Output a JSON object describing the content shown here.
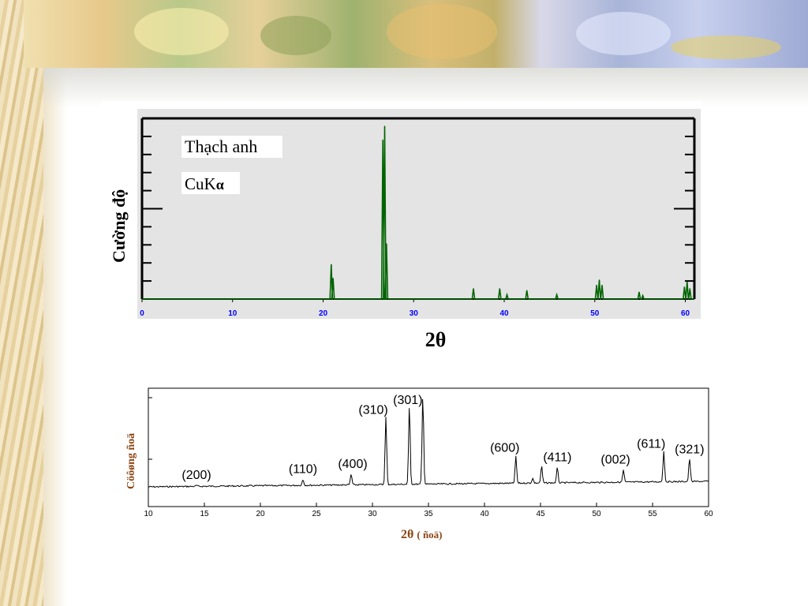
{
  "chart_data": [
    {
      "type": "line",
      "ylabel": "Cường độ",
      "xlabel": "2θ",
      "annotations": [
        "Thạch anh",
        "CuK",
        "α"
      ],
      "xlim": [
        0,
        61
      ],
      "xticks": [
        0,
        10,
        20,
        30,
        40,
        50,
        60
      ],
      "colors": {
        "line": "#006400",
        "ticks": "#0000ff",
        "plot_bg": "#e4e4e4"
      },
      "peaks": [
        {
          "x": 20.9,
          "y": 20
        },
        {
          "x": 21.1,
          "y": 12
        },
        {
          "x": 26.6,
          "y": 92
        },
        {
          "x": 26.8,
          "y": 100
        },
        {
          "x": 27.0,
          "y": 32
        },
        {
          "x": 36.6,
          "y": 6
        },
        {
          "x": 39.5,
          "y": 6
        },
        {
          "x": 40.3,
          "y": 2.5
        },
        {
          "x": 42.5,
          "y": 5
        },
        {
          "x": 45.8,
          "y": 2.5
        },
        {
          "x": 50.2,
          "y": 8
        },
        {
          "x": 50.5,
          "y": 11
        },
        {
          "x": 50.8,
          "y": 8
        },
        {
          "x": 54.9,
          "y": 4
        },
        {
          "x": 55.3,
          "y": 2
        },
        {
          "x": 59.9,
          "y": 7
        },
        {
          "x": 60.2,
          "y": 10
        },
        {
          "x": 60.5,
          "y": 6
        }
      ]
    },
    {
      "type": "line",
      "ylabel": "Cöôøng ñoä",
      "xlabel": "2θ",
      "xlabel_unit": "( ñoä)",
      "xlim": [
        10,
        60
      ],
      "xticks": [
        10,
        15,
        20,
        25,
        30,
        35,
        40,
        45,
        50,
        55,
        60
      ],
      "colors": {
        "line": "#000000",
        "label": "#8b4513"
      },
      "peaks": [
        {
          "x": 14.3,
          "y": 1,
          "label": "(200)"
        },
        {
          "x": 23.8,
          "y": 6,
          "label": "(110)"
        },
        {
          "x": 28.1,
          "y": 11,
          "label": "(400)"
        },
        {
          "x": 31.2,
          "y": 70,
          "label": "(310)"
        },
        {
          "x": 33.3,
          "y": 82,
          "label": "(301)"
        },
        {
          "x": 34.5,
          "y": 92,
          "label": ""
        },
        {
          "x": 42.8,
          "y": 28,
          "label": "(600)"
        },
        {
          "x": 44.3,
          "y": 5,
          "label": ""
        },
        {
          "x": 45.1,
          "y": 18,
          "label": "(411)"
        },
        {
          "x": 46.5,
          "y": 16,
          "label": ""
        },
        {
          "x": 52.4,
          "y": 13,
          "label": "(002)"
        },
        {
          "x": 56.0,
          "y": 33,
          "label": "(611)"
        },
        {
          "x": 58.3,
          "y": 25,
          "label": "(321)"
        }
      ]
    }
  ]
}
